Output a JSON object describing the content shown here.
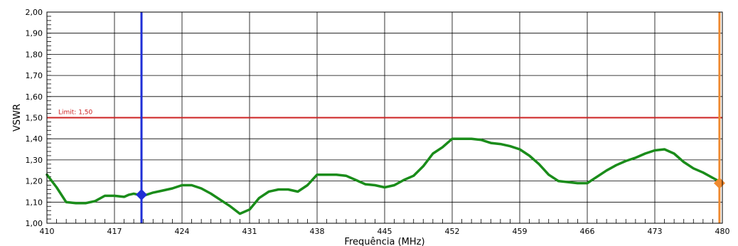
{
  "chart_data": {
    "type": "line",
    "xlabel": "Frequência (MHz)",
    "ylabel": "VSWR",
    "xlim": [
      410,
      480
    ],
    "ylim": [
      1.0,
      2.0
    ],
    "x_ticks": [
      410,
      417,
      424,
      431,
      438,
      445,
      452,
      459,
      466,
      473,
      480
    ],
    "x_tick_labels": [
      "410",
      "417",
      "424",
      "431",
      "438",
      "445",
      "452",
      "459",
      "466",
      "473",
      "480"
    ],
    "y_ticks": [
      1.0,
      1.1,
      1.2,
      1.3,
      1.4,
      1.5,
      1.6,
      1.7,
      1.8,
      1.9,
      2.0
    ],
    "y_tick_labels": [
      "1,00",
      "1,10",
      "1,20",
      "1,30",
      "1,40",
      "1,50",
      "1,60",
      "1,70",
      "1,80",
      "1,90",
      "2,00"
    ],
    "grid": true,
    "limit": {
      "value": 1.5,
      "label": "Limit: 1,50",
      "color": "#cc2222"
    },
    "series": [
      {
        "color": "#1a8c1a",
        "x": [
          410,
          411,
          412,
          413,
          414,
          415,
          416,
          417,
          418,
          418.5,
          419,
          420,
          421,
          422,
          423,
          424,
          425,
          426,
          427,
          428,
          429,
          430,
          431,
          432,
          433,
          434,
          435,
          436,
          437,
          438,
          439,
          440,
          441,
          442,
          443,
          444,
          445,
          446,
          447,
          448,
          449,
          450,
          451,
          452,
          453,
          454,
          455,
          456,
          457,
          458,
          459,
          460,
          461,
          462,
          463,
          464,
          465,
          466,
          467,
          468,
          469,
          470,
          471,
          472,
          473,
          474,
          475,
          476,
          477,
          478,
          479,
          480
        ],
        "y": [
          1.23,
          1.17,
          1.1,
          1.095,
          1.095,
          1.105,
          1.13,
          1.13,
          1.125,
          1.135,
          1.14,
          1.13,
          1.145,
          1.155,
          1.165,
          1.18,
          1.18,
          1.165,
          1.14,
          1.11,
          1.08,
          1.045,
          1.065,
          1.12,
          1.15,
          1.16,
          1.16,
          1.15,
          1.18,
          1.23,
          1.23,
          1.23,
          1.225,
          1.205,
          1.185,
          1.18,
          1.17,
          1.18,
          1.205,
          1.225,
          1.27,
          1.33,
          1.36,
          1.4,
          1.4,
          1.4,
          1.395,
          1.38,
          1.375,
          1.365,
          1.35,
          1.32,
          1.28,
          1.23,
          1.2,
          1.195,
          1.19,
          1.19,
          1.22,
          1.25,
          1.275,
          1.295,
          1.31,
          1.33,
          1.345,
          1.35,
          1.33,
          1.29,
          1.26,
          1.24,
          1.215,
          1.19
        ]
      }
    ],
    "markers": [
      {
        "x": 419.8,
        "y": 1.135,
        "color": "#1f2fd6"
      },
      {
        "x": 479.7,
        "y": 1.19,
        "color": "#f08a30"
      }
    ]
  }
}
